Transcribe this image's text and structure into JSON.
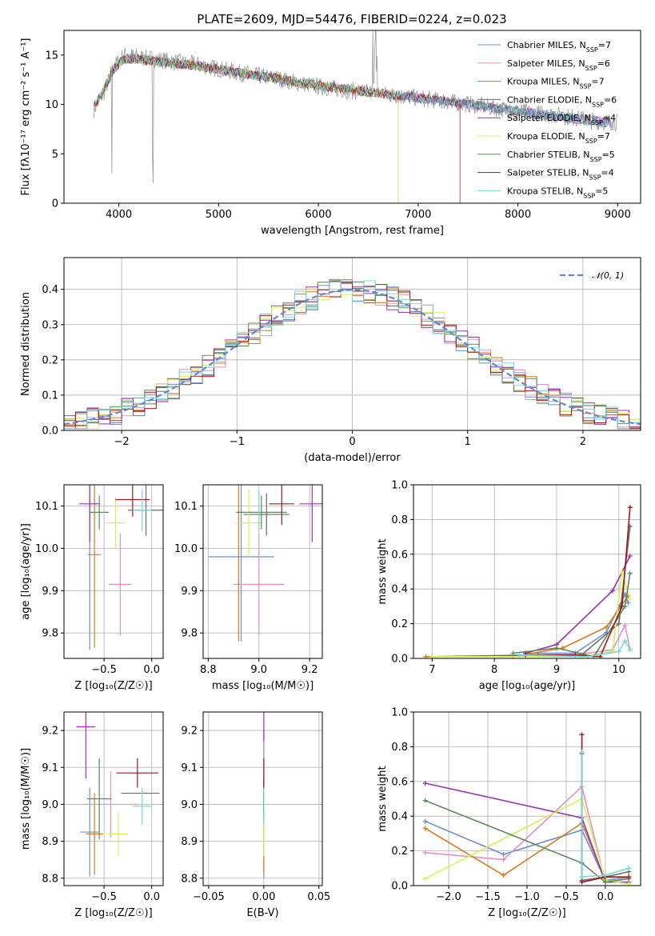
{
  "figure": {
    "title": "PLATE=2609, MJD=54476, FIBERID=0224, z=0.023",
    "series_colors": [
      "#6b8fd6",
      "#e58fc2",
      "#d67a1e",
      "#6b6b6b",
      "#9b2fb5",
      "#d7ef5a",
      "#5a8a5a",
      "#a01818",
      "#74d7de"
    ]
  },
  "chart_data": [
    {
      "id": "spectrum",
      "type": "line",
      "title": "PLATE=2609, MJD=54476, FIBERID=0224, z=0.023",
      "xlabel": "wavelength [Angstrom, rest frame]",
      "ylabel": "Flux [fλ10⁻¹⁷ erg cm⁻² s⁻¹ A⁻¹]",
      "xlim": [
        3450,
        9230
      ],
      "ylim": [
        0,
        17.5
      ],
      "xticks": [
        4000,
        5000,
        6000,
        7000,
        8000,
        9000
      ],
      "yticks": [
        0,
        5,
        10,
        15
      ],
      "grid": false,
      "legend_position": "top-right",
      "legend": [
        {
          "model": "Chabrier MILES",
          "nssp": "7"
        },
        {
          "model": "Salpeter MILES",
          "nssp": "6"
        },
        {
          "model": "Kroupa MILES",
          "nssp": "7"
        },
        {
          "model": "Chabrier ELODIE",
          "nssp": "6"
        },
        {
          "model": "Salpeter ELODIE",
          "nssp": "4"
        },
        {
          "model": "Kroupa ELODIE",
          "nssp": "7"
        },
        {
          "model": "Chabrier STELIB",
          "nssp": "5"
        },
        {
          "model": "Salpeter STELIB",
          "nssp": "4"
        },
        {
          "model": "Kroupa STELIB",
          "nssp": "5"
        }
      ],
      "data_gray": [
        [
          3750,
          9.5
        ],
        [
          3850,
          11.2
        ],
        [
          3950,
          13.8
        ],
        [
          4050,
          15.0
        ],
        [
          4200,
          14.8
        ],
        [
          4500,
          14.4
        ],
        [
          4800,
          14.0
        ],
        [
          5200,
          13.2
        ],
        [
          5600,
          12.6
        ],
        [
          6000,
          11.8
        ],
        [
          6400,
          11.3
        ],
        [
          6800,
          10.9
        ],
        [
          7200,
          10.4
        ],
        [
          7600,
          9.9
        ],
        [
          8000,
          9.3
        ],
        [
          8400,
          8.9
        ],
        [
          8800,
          8.3
        ],
        [
          9000,
          8.2
        ]
      ],
      "model": [
        [
          3750,
          9.8
        ],
        [
          3850,
          11.5
        ],
        [
          3950,
          13.6
        ],
        [
          4050,
          14.6
        ],
        [
          4200,
          14.6
        ],
        [
          4500,
          14.2
        ],
        [
          4800,
          13.9
        ],
        [
          5200,
          13.2
        ],
        [
          5600,
          12.6
        ],
        [
          6000,
          11.9
        ],
        [
          6400,
          11.4
        ],
        [
          6800,
          10.9
        ],
        [
          7200,
          10.4
        ],
        [
          7600,
          9.9
        ],
        [
          8000,
          9.3
        ],
        [
          8400,
          8.8
        ],
        [
          8800,
          8.3
        ],
        [
          8950,
          8.1
        ]
      ]
    },
    {
      "id": "residuals",
      "type": "bar",
      "xlabel": "(data-model)/error",
      "ylabel": "Normed distribution",
      "xlim": [
        -2.5,
        2.5
      ],
      "ylim": [
        0,
        0.49
      ],
      "xticks": [
        -2,
        -1,
        0,
        1,
        2
      ],
      "yticks": [
        0.0,
        0.1,
        0.2,
        0.3,
        0.4
      ],
      "grid": true,
      "legend_position": "top-right",
      "legend": [
        {
          "name": "𝒩(0, 1)"
        }
      ],
      "bin_width": 0.1
    },
    {
      "id": "age-vs-z",
      "type": "scatter",
      "xlabel": "Z [log₁₀(Z/Z☉)]",
      "ylabel": "age  [log₁₀(age/yr)]",
      "xlim": [
        -0.92,
        0.12
      ],
      "ylim": [
        9.74,
        10.15
      ],
      "xticks": [
        -0.5,
        0.0
      ],
      "yticks": [
        9.8,
        9.9,
        10.0,
        10.1
      ],
      "grid": true,
      "points": [
        {
          "x": -0.65,
          "y": 9.96,
          "xe": 0.0,
          "ye": 0.2
        },
        {
          "x": -0.33,
          "y": 9.915,
          "xe": 0.12,
          "ye": 0.12
        },
        {
          "x": -0.6,
          "y": 9.985,
          "xe": 0.07,
          "ye": 0.22
        },
        {
          "x": -0.06,
          "y": 10.09,
          "xe": 0.19,
          "ye": 0.06
        },
        {
          "x": -0.65,
          "y": 10.105,
          "xe": 0.11,
          "ye": 0.09
        },
        {
          "x": -0.38,
          "y": 10.06,
          "xe": 0.1,
          "ye": 0.06
        },
        {
          "x": -0.55,
          "y": 10.085,
          "xe": 0.1,
          "ye": 0.04
        },
        {
          "x": -0.2,
          "y": 10.115,
          "xe": 0.18,
          "ye": 0.04
        },
        {
          "x": -0.1,
          "y": 10.09,
          "xe": 0.1,
          "ye": 0.05
        }
      ]
    },
    {
      "id": "age-vs-mass",
      "type": "scatter",
      "xlabel": "mass [log₁₀(M/M☉)]",
      "ylabel": "",
      "xlim": [
        8.78,
        9.25
      ],
      "ylim": [
        9.74,
        10.15
      ],
      "xticks": [
        8.8,
        9.0,
        9.2
      ],
      "yticks": [
        9.8,
        9.9,
        10.0,
        10.1
      ],
      "grid": true,
      "points": [
        {
          "x": 8.93,
          "y": 9.98,
          "xe": 0.13,
          "ye": 0.2
        },
        {
          "x": 9.0,
          "y": 9.915,
          "xe": 0.1,
          "ye": 0.12
        },
        {
          "x": 8.92,
          "y": 9.98,
          "xe": 0.0,
          "ye": 0.2
        },
        {
          "x": 9.03,
          "y": 10.08,
          "xe": 0.09,
          "ye": 0.05
        },
        {
          "x": 9.21,
          "y": 10.105,
          "xe": 0.05,
          "ye": 0.09
        },
        {
          "x": 8.96,
          "y": 10.06,
          "xe": 0.05,
          "ye": 0.08
        },
        {
          "x": 9.01,
          "y": 10.085,
          "xe": 0.1,
          "ye": 0.04
        },
        {
          "x": 9.09,
          "y": 10.105,
          "xe": 0.05,
          "ye": 0.05
        },
        {
          "x": 9.0,
          "y": 10.09,
          "xe": 0.0,
          "ye": 0.05
        }
      ]
    },
    {
      "id": "weight-vs-age",
      "type": "line",
      "xlabel": "age  [log₁₀(age/yr)]",
      "ylabel": "mass weight",
      "xlim": [
        6.7,
        10.35
      ],
      "ylim": [
        0,
        1.0
      ],
      "xticks": [
        7,
        8,
        9,
        10
      ],
      "yticks": [
        0.0,
        0.2,
        0.4,
        0.6,
        0.8,
        1.0
      ],
      "grid": true,
      "series": [
        {
          "points": [
            [
              8.5,
              0.03
            ],
            [
              9.3,
              0.03
            ],
            [
              9.8,
              0.15
            ],
            [
              10.1,
              0.37
            ],
            [
              10.15,
              0.32
            ]
          ]
        },
        {
          "points": [
            [
              8.6,
              0.02
            ],
            [
              9.3,
              0.02
            ],
            [
              9.9,
              0.05
            ],
            [
              10.1,
              0.19
            ],
            [
              10.18,
              0.05
            ]
          ]
        },
        {
          "points": [
            [
              6.9,
              0.01
            ],
            [
              8.3,
              0.01
            ],
            [
              9.1,
              0.06
            ],
            [
              9.8,
              0.18
            ],
            [
              10.15,
              0.36
            ]
          ]
        },
        {
          "points": [
            [
              7.0,
              0.01
            ],
            [
              8.7,
              0.02
            ],
            [
              9.4,
              0.02
            ],
            [
              10.0,
              0.2
            ],
            [
              10.18,
              0.76
            ]
          ]
        },
        {
          "points": [
            [
              8.5,
              0.03
            ],
            [
              9.0,
              0.08
            ],
            [
              9.9,
              0.39
            ],
            [
              10.18,
              0.59
            ]
          ]
        },
        {
          "points": [
            [
              7.0,
              0.01
            ],
            [
              8.5,
              0.01
            ],
            [
              9.4,
              0.01
            ],
            [
              9.9,
              0.04
            ],
            [
              10.05,
              0.5
            ],
            [
              10.18,
              0.34
            ]
          ]
        },
        {
          "points": [
            [
              8.3,
              0.03
            ],
            [
              9.0,
              0.06
            ],
            [
              9.6,
              0.01
            ],
            [
              10.1,
              0.3
            ],
            [
              10.18,
              0.49
            ]
          ]
        },
        {
          "points": [
            [
              8.5,
              0.02
            ],
            [
              9.3,
              0.02
            ],
            [
              9.7,
              0.01
            ],
            [
              10.05,
              0.3
            ],
            [
              10.18,
              0.87
            ]
          ]
        },
        {
          "points": [
            [
              8.4,
              0.02
            ],
            [
              9.5,
              0.01
            ],
            [
              10.0,
              0.04
            ],
            [
              10.1,
              0.1
            ],
            [
              10.18,
              0.05
            ]
          ]
        }
      ]
    },
    {
      "id": "mass-vs-z",
      "type": "scatter",
      "xlabel": "Z [log₁₀(Z/Z☉)]",
      "ylabel": "mass [log₁₀(M/M☉)]",
      "xlim": [
        -0.92,
        0.12
      ],
      "ylim": [
        8.78,
        9.25
      ],
      "xticks": [
        -0.5,
        0.0
      ],
      "yticks": [
        8.8,
        8.9,
        9.0,
        9.1,
        9.2
      ],
      "grid": true,
      "points": [
        {
          "x": -0.65,
          "y": 8.925,
          "xe": 0.1,
          "ye": 0.12
        },
        {
          "x": -0.43,
          "y": 9.0,
          "xe": 0.29,
          "ye": 0.09
        },
        {
          "x": -0.6,
          "y": 8.92,
          "xe": 0.09,
          "ye": 0.11
        },
        {
          "x": -0.12,
          "y": 9.03,
          "xe": 0.2,
          "ye": 0.0
        },
        {
          "x": -0.69,
          "y": 9.21,
          "xe": 0.1,
          "ye": 0.14
        },
        {
          "x": -0.35,
          "y": 8.92,
          "xe": 0.1,
          "ye": 0.06
        },
        {
          "x": -0.55,
          "y": 9.015,
          "xe": 0.13,
          "ye": 0.11
        },
        {
          "x": -0.15,
          "y": 9.085,
          "xe": 0.22,
          "ye": 0.04
        },
        {
          "x": -0.1,
          "y": 8.995,
          "xe": 0.1,
          "ye": 0.05
        }
      ]
    },
    {
      "id": "mass-vs-ebv",
      "type": "scatter",
      "xlabel": "E(B-V)",
      "ylabel": "",
      "xlim": [
        -0.055,
        0.053
      ],
      "ylim": [
        8.78,
        9.25
      ],
      "xticks": [
        -0.05,
        0.0,
        0.05
      ],
      "xtick_labels": [
        "−0.05",
        "0.00",
        "0.05"
      ],
      "yticks": [
        8.8,
        8.9,
        9.0,
        9.1,
        9.2
      ],
      "grid": true,
      "points": [
        {
          "x": 0.0,
          "y": 9.0,
          "xe": 0.0,
          "ye": 0.2
        },
        {
          "x": 0.0,
          "y": 9.0,
          "xe": 0.0,
          "ye": 0.09
        },
        {
          "x": 0.0,
          "y": 8.92,
          "xe": 0.0,
          "ye": 0.11
        },
        {
          "x": 0.0,
          "y": 9.03,
          "xe": 0.0,
          "ye": 0.04
        },
        {
          "x": 0.0,
          "y": 9.21,
          "xe": 0.0,
          "ye": 0.04
        },
        {
          "x": 0.0,
          "y": 8.92,
          "xe": 0.0,
          "ye": 0.06
        },
        {
          "x": 0.0,
          "y": 9.015,
          "xe": 0.0,
          "ye": 0.05
        },
        {
          "x": 0.0,
          "y": 9.085,
          "xe": 0.0,
          "ye": 0.04
        },
        {
          "x": 0.0,
          "y": 8.995,
          "xe": 0.0,
          "ye": 0.05
        }
      ]
    },
    {
      "id": "weight-vs-z",
      "type": "line",
      "xlabel": "Z [log₁₀(Z/Z☉)]",
      "ylabel": "mass weight",
      "xlim": [
        -2.45,
        0.45
      ],
      "ylim": [
        0,
        1.0
      ],
      "xticks": [
        -2.0,
        -1.5,
        -1.0,
        -0.5,
        0.0
      ],
      "yticks": [
        0.0,
        0.2,
        0.4,
        0.6,
        0.8,
        1.0
      ],
      "grid": true,
      "series": [
        {
          "points": [
            [
              -2.3,
              0.37
            ],
            [
              -1.3,
              0.18
            ],
            [
              -0.3,
              0.32
            ],
            [
              0.0,
              0.03
            ],
            [
              0.3,
              0.05
            ]
          ]
        },
        {
          "points": [
            [
              -2.3,
              0.19
            ],
            [
              -1.3,
              0.15
            ],
            [
              -0.3,
              0.57
            ],
            [
              0.0,
              0.02
            ],
            [
              0.3,
              0.04
            ]
          ]
        },
        {
          "points": [
            [
              -2.3,
              0.33
            ],
            [
              -1.3,
              0.06
            ],
            [
              -0.3,
              0.36
            ],
            [
              0.0,
              0.03
            ],
            [
              0.3,
              0.01
            ]
          ]
        },
        {
          "points": [
            [
              -0.3,
              0.76
            ],
            [
              -0.3,
              0.03
            ],
            [
              0.0,
              0.05
            ],
            [
              0.3,
              0.08
            ]
          ]
        },
        {
          "points": [
            [
              -2.3,
              0.59
            ],
            [
              -0.3,
              0.39
            ],
            [
              0.0,
              0.02
            ],
            [
              0.3,
              0.02
            ]
          ]
        },
        {
          "points": [
            [
              -2.3,
              0.04
            ],
            [
              -0.3,
              0.5
            ],
            [
              0.0,
              0.03
            ],
            [
              0.3,
              0.01
            ]
          ]
        },
        {
          "points": [
            [
              -2.3,
              0.49
            ],
            [
              -0.3,
              0.13
            ],
            [
              0.0,
              0.02
            ],
            [
              0.3,
              0.04
            ]
          ]
        },
        {
          "points": [
            [
              -0.3,
              0.87
            ],
            [
              -0.3,
              0.02
            ],
            [
              0.0,
              0.05
            ],
            [
              0.3,
              0.05
            ]
          ]
        },
        {
          "points": [
            [
              -0.3,
              0.77
            ],
            [
              -0.3,
              0.05
            ],
            [
              0.0,
              0.06
            ],
            [
              0.3,
              0.1
            ]
          ]
        }
      ]
    }
  ]
}
